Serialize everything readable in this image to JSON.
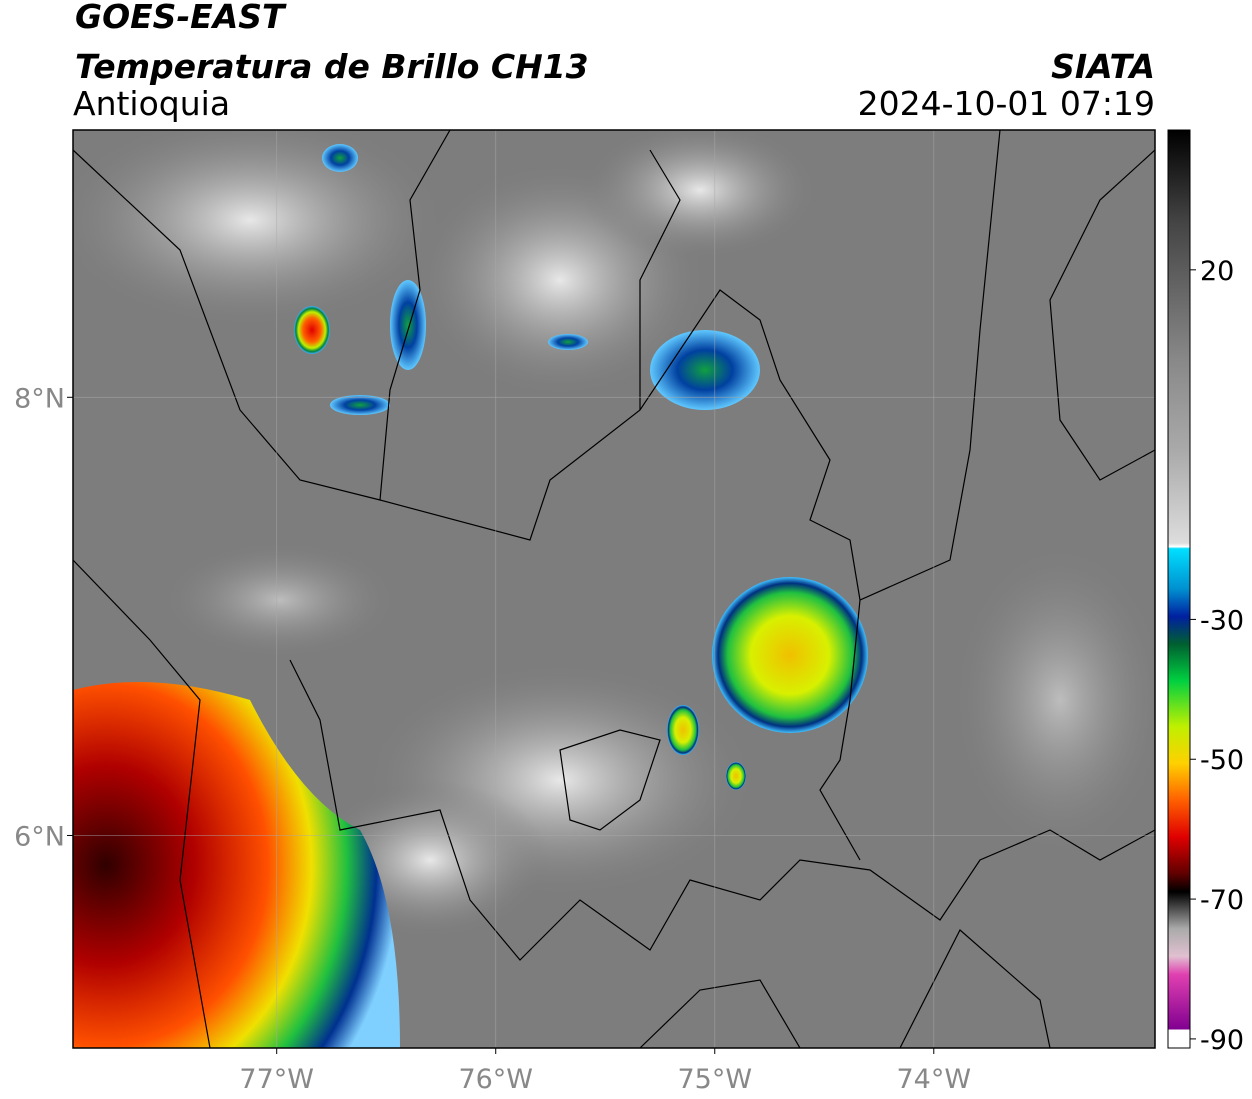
{
  "header": {
    "satellite": "GOES-EAST",
    "product": "Temperatura de Brillo CH13",
    "region": "Antioquia",
    "source": "SIATA",
    "datetime": "2024-10-01 07:19"
  },
  "map": {
    "xlim": [
      -77.93,
      -72.99
    ],
    "ylim": [
      5.03,
      9.22
    ],
    "xticks": [
      {
        "value": -77,
        "label": "77°W"
      },
      {
        "value": -76,
        "label": "76°W"
      },
      {
        "value": -75,
        "label": "75°W"
      },
      {
        "value": -74,
        "label": "74°W"
      }
    ],
    "yticks": [
      {
        "value": 8,
        "label": "8°N"
      },
      {
        "value": 6,
        "label": "6°N"
      }
    ],
    "grid": true
  },
  "colorbar": {
    "lim": [
      -91.3,
      40
    ],
    "ticks": [
      20,
      -30,
      -50,
      -70,
      -90
    ]
  }
}
